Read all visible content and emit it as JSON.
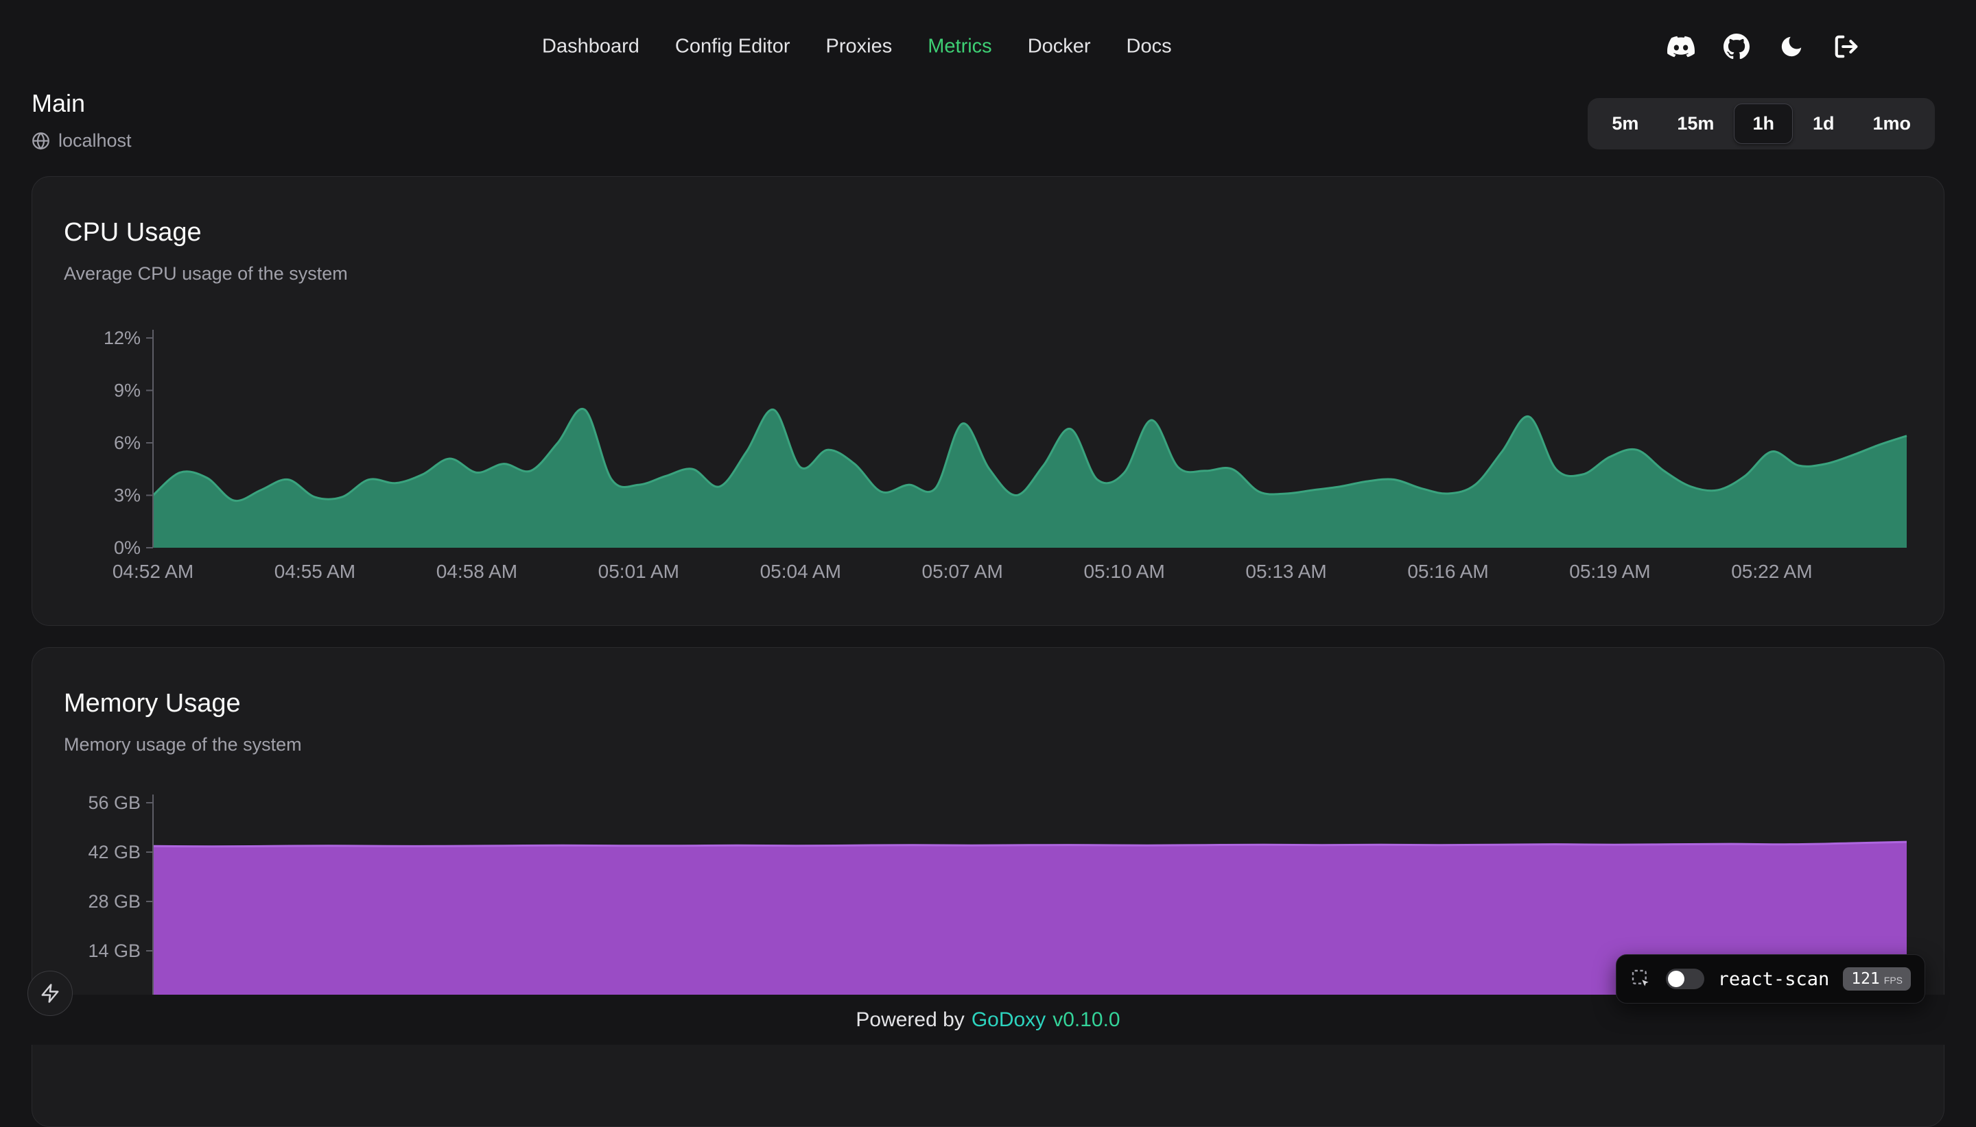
{
  "colors": {
    "background": "#151517",
    "card_background": "#1c1c1e",
    "accent_green_nav": "#3ecf74",
    "brand_teal": "#2dd4bf",
    "version_green": "#34d399",
    "axis_text": "#9f9fa8",
    "axis_line": "#5d5d66",
    "cpu_fill": "#2d8467",
    "cpu_stroke": "#3aa37e",
    "mem_fill": "#9a4cc5",
    "mem_stroke": "#ae66e0"
  },
  "nav": {
    "items": [
      {
        "label": "Dashboard",
        "active": false
      },
      {
        "label": "Config Editor",
        "active": false
      },
      {
        "label": "Proxies",
        "active": false
      },
      {
        "label": "Metrics",
        "active": true
      },
      {
        "label": "Docker",
        "active": false
      },
      {
        "label": "Docs",
        "active": false
      }
    ],
    "icon_names": [
      "discord",
      "github",
      "dark-mode-moon",
      "logout"
    ]
  },
  "page": {
    "title": "Main",
    "host": "localhost",
    "host_icon": "globe"
  },
  "time_range": {
    "options": [
      "5m",
      "15m",
      "1h",
      "1d",
      "1mo"
    ],
    "selected": "1h"
  },
  "footer": {
    "powered_by": "Powered by",
    "brand": "GoDoxy",
    "version": "v0.10.0"
  },
  "react_scan": {
    "icon": "inspect-frame",
    "toggle_state": "off",
    "label": "react-scan",
    "fps": "121",
    "fps_unit": "FPS"
  },
  "zap_button_icon": "lightning-bolt",
  "chart_data": [
    {
      "type": "area",
      "title": "CPU Usage",
      "subtitle": "Average CPU usage of the system",
      "unit": "%",
      "y_max": 12,
      "y_tick_values": [
        0,
        3,
        6,
        9,
        12
      ],
      "y_ticks": [
        "0%",
        "3%",
        "6%",
        "9%",
        "12%"
      ],
      "x_ticks": [
        "04:52 AM",
        "04:55 AM",
        "04:58 AM",
        "05:01 AM",
        "05:04 AM",
        "05:07 AM",
        "05:10 AM",
        "05:13 AM",
        "05:16 AM",
        "05:19 AM",
        "05:22 AM"
      ],
      "x_tick_minutes": 3,
      "interval_min": 0.5,
      "legend": "none",
      "grid": false,
      "fill": "#2d8467",
      "stroke": "#3aa37e",
      "values": [
        3.0,
        4.3,
        4.0,
        2.7,
        3.3,
        3.9,
        2.9,
        2.9,
        3.9,
        3.7,
        4.2,
        5.1,
        4.3,
        4.8,
        4.4,
        6.0,
        7.9,
        3.9,
        3.6,
        4.1,
        4.5,
        3.5,
        5.5,
        7.9,
        4.6,
        5.6,
        4.8,
        3.2,
        3.6,
        3.4,
        7.1,
        4.5,
        3.0,
        4.7,
        6.8,
        3.9,
        4.3,
        7.3,
        4.6,
        4.4,
        4.5,
        3.2,
        3.1,
        3.3,
        3.5,
        3.8,
        3.9,
        3.4,
        3.1,
        3.6,
        5.5,
        7.5,
        4.5,
        4.2,
        5.2,
        5.6,
        4.4,
        3.5,
        3.3,
        4.1,
        5.5,
        4.7,
        4.8,
        5.3,
        5.9,
        6.4
      ]
    },
    {
      "type": "area",
      "title": "Memory Usage",
      "subtitle": "Memory usage of the system",
      "unit": "GB",
      "y_max": 56,
      "y_tick_values": [
        14,
        28,
        42,
        56
      ],
      "y_ticks": [
        "14 GB",
        "28 GB",
        "42 GB",
        "56 GB"
      ],
      "x_ticks": [],
      "x_tick_minutes": 3,
      "interval_min": 1,
      "legend": "none",
      "grid": false,
      "fill": "#9a4cc5",
      "stroke": "#ae66e0",
      "values": [
        43.7,
        43.6,
        43.7,
        43.8,
        43.7,
        43.7,
        43.8,
        43.9,
        43.8,
        43.8,
        43.9,
        43.8,
        43.9,
        44.0,
        43.9,
        44.0,
        44.0,
        43.9,
        44.0,
        44.1,
        44.0,
        44.1,
        44.0,
        44.1,
        44.2,
        44.1,
        44.2,
        44.3,
        44.2,
        44.5,
        44.9
      ]
    }
  ]
}
